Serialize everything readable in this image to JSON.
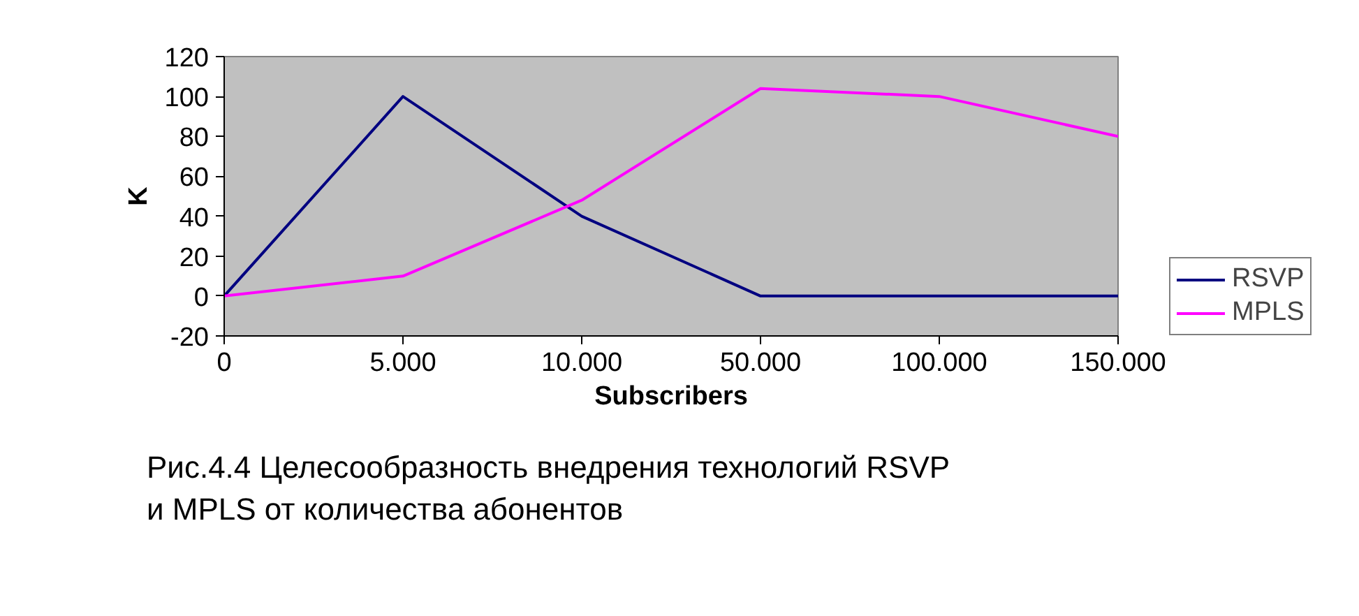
{
  "chart_data": {
    "type": "line",
    "xlabel": "Subscribers",
    "ylabel": "K",
    "categories": [
      "0",
      "5.000",
      "10.000",
      "50.000",
      "100.000",
      "150.000"
    ],
    "series": [
      {
        "name": "RSVP",
        "color": "#000080",
        "values": [
          0,
          100,
          40,
          0,
          0,
          0
        ]
      },
      {
        "name": "MPLS",
        "color": "#ff00ff",
        "values": [
          0,
          10,
          48,
          104,
          100,
          80
        ]
      }
    ],
    "ylim": [
      -20,
      120
    ],
    "yticks": [
      -20,
      0,
      20,
      40,
      60,
      80,
      100,
      120
    ],
    "grid": false,
    "legend": "right",
    "marker": "none",
    "line_style": "solid",
    "annotations": [
      "Рис.4.4 Целесообразность внедрения технологий RSVP\nи MPLS от количества абонентов"
    ]
  }
}
